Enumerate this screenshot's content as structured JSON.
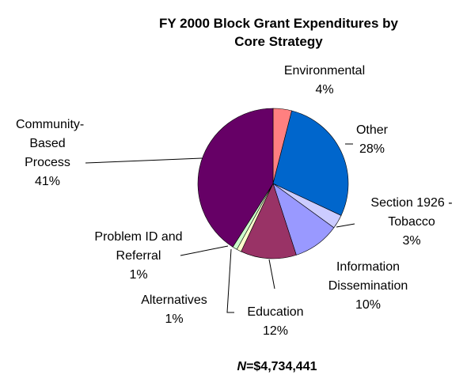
{
  "chart_data": {
    "type": "pie",
    "title": "FY 2000 Block Grant Expenditures by Core Strategy",
    "categories": [
      "Environmental",
      "Other",
      "Section 1926 - Tobacco",
      "Information Dissemination",
      "Education",
      "Alternatives",
      "Problem ID and Referral",
      "Community-Based Process"
    ],
    "values": [
      4,
      28,
      3,
      10,
      12,
      1,
      1,
      41
    ],
    "value_labels": [
      "4%",
      "28%",
      "3%",
      "10%",
      "12%",
      "1%",
      "1%",
      "41%"
    ],
    "colors": [
      "#ff8080",
      "#0066cc",
      "#ccccff",
      "#9999ff",
      "#993366",
      "#ffffcc",
      "#ccffcc",
      "#660066"
    ],
    "footnote": {
      "variable": "N",
      "text": "=$4,734,441"
    }
  }
}
